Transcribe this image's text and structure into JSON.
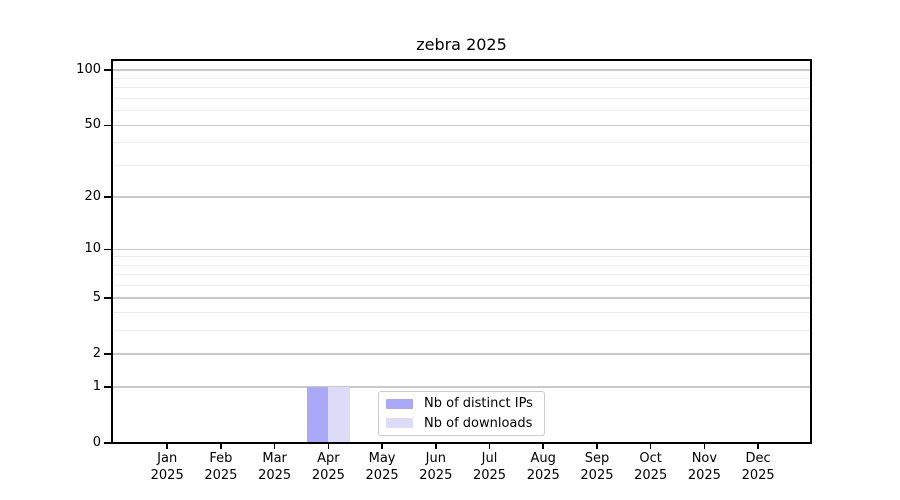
{
  "chart_data": {
    "type": "bar",
    "title": "zebra 2025",
    "categories": [
      "Jan",
      "Feb",
      "Mar",
      "Apr",
      "May",
      "Jun",
      "Jul",
      "Aug",
      "Sep",
      "Oct",
      "Nov",
      "Dec"
    ],
    "x_year": "2025",
    "series": [
      {
        "name": "Nb of distinct IPs",
        "color": "#a9a9f7",
        "values": [
          0,
          0,
          0,
          1,
          0,
          0,
          0,
          0,
          0,
          0,
          0,
          0
        ]
      },
      {
        "name": "Nb of downloads",
        "color": "#dcdcf9",
        "values": [
          0,
          0,
          0,
          1,
          0,
          0,
          0,
          0,
          0,
          0,
          0,
          0
        ]
      }
    ],
    "xlabel": "",
    "ylabel": "",
    "yscale": "log1p",
    "ylim": [
      0,
      113.5
    ],
    "y_major_ticks": [
      0,
      1,
      2,
      5,
      10,
      20,
      50,
      100
    ],
    "y_minor_ticks": [
      3,
      4,
      6,
      7,
      8,
      9,
      30,
      40,
      60,
      70,
      80,
      90
    ],
    "grid": "horizontal-major-and-minor",
    "legend_position": "lower-center-inside"
  },
  "legend": {
    "items": [
      {
        "label": "Nb of distinct IPs",
        "color": "#a9a9f7"
      },
      {
        "label": "Nb of downloads",
        "color": "#dcdcf9"
      }
    ]
  },
  "colors": {
    "background": "#ffffff",
    "spine": "#000000",
    "text": "#000000",
    "grid_major": "#c9c9c9",
    "grid_minor": "#ededed",
    "legend_border": "#cccccc"
  }
}
